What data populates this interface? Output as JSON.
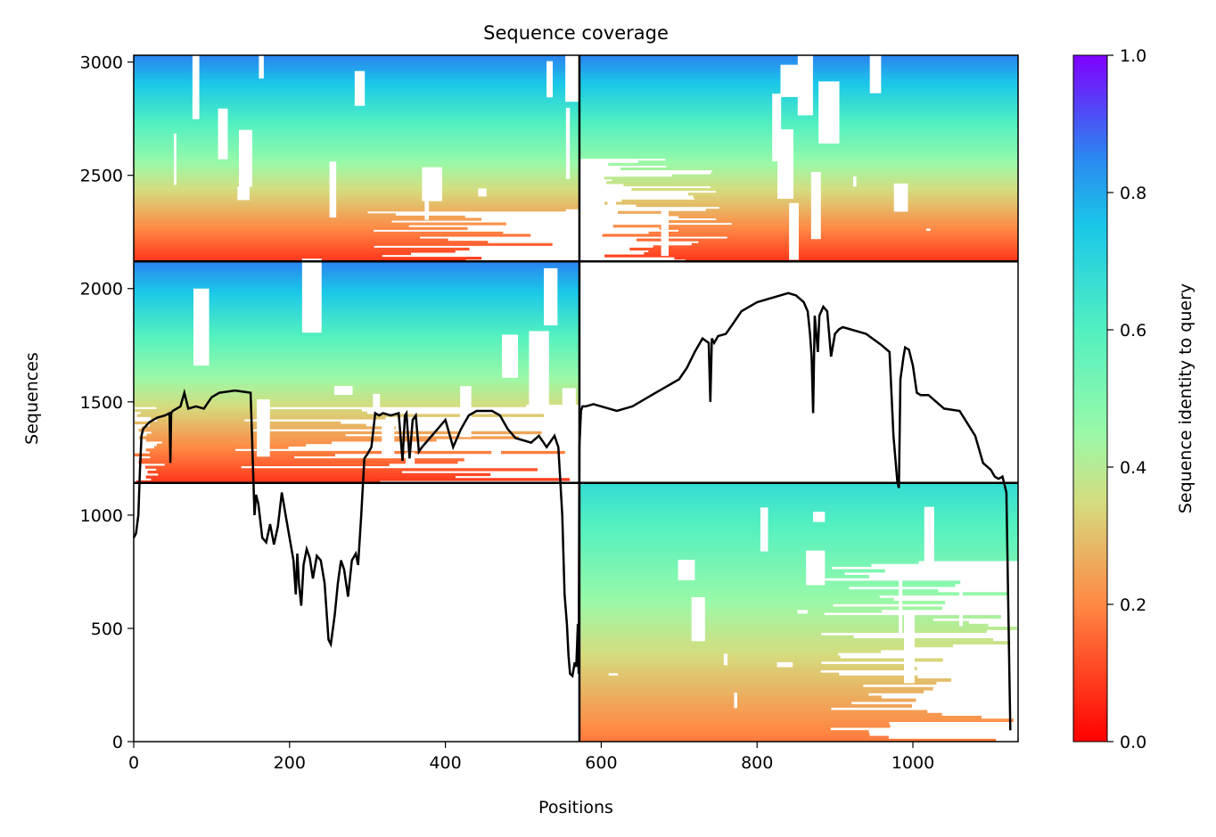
{
  "chart_data": {
    "type": "heatmap",
    "title": "Sequence coverage",
    "xlabel": "Positions",
    "ylabel": "Sequences",
    "xlim": [
      0,
      1135
    ],
    "ylim": [
      0,
      3030
    ],
    "xticks": [
      0,
      200,
      400,
      600,
      800,
      1000
    ],
    "yticks": [
      0,
      500,
      1000,
      1500,
      2000,
      2500,
      3000
    ],
    "colorbar": {
      "label": "Sequence identity to query",
      "range": [
        0.0,
        1.0
      ],
      "ticks": [
        "0.0",
        "0.2",
        "0.4",
        "0.6",
        "0.8",
        "1.0"
      ],
      "colormap": "rainbow_r"
    },
    "block_boundaries": {
      "x": [
        572
      ],
      "y": [
        1142,
        2120
      ]
    },
    "blocks": [
      {
        "xrange": [
          0,
          572
        ],
        "yrange": [
          2120,
          3030
        ]
      },
      {
        "xrange": [
          572,
          1135
        ],
        "yrange": [
          2120,
          3030
        ]
      },
      {
        "xrange": [
          0,
          572
        ],
        "yrange": [
          1142,
          2120
        ]
      },
      {
        "xrange": [
          572,
          1135
        ],
        "yrange": [
          0,
          1142
        ]
      }
    ],
    "coverage_line": {
      "x": [
        0,
        3,
        6,
        8,
        10,
        12,
        20,
        30,
        40,
        46,
        47,
        48,
        50,
        60,
        65,
        70,
        80,
        90,
        100,
        110,
        120,
        130,
        140,
        150,
        155,
        157,
        160,
        165,
        170,
        175,
        180,
        185,
        190,
        195,
        200,
        205,
        208,
        210,
        212,
        215,
        218,
        222,
        226,
        230,
        235,
        240,
        245,
        250,
        253,
        258,
        262,
        266,
        270,
        275,
        280,
        285,
        288,
        292,
        296,
        300,
        305,
        310,
        315,
        320,
        330,
        340,
        345,
        348,
        350,
        354,
        358,
        362,
        366,
        370,
        380,
        390,
        400,
        410,
        420,
        430,
        440,
        450,
        460,
        470,
        480,
        490,
        500,
        510,
        520,
        530,
        540,
        545,
        550,
        553,
        556,
        558,
        560,
        563,
        566,
        568,
        570,
        571,
        572,
        574,
        576,
        580,
        590,
        600,
        620,
        640,
        660,
        670,
        680,
        690,
        700,
        710,
        720,
        730,
        738,
        740,
        742,
        745,
        750,
        760,
        770,
        780,
        790,
        800,
        820,
        840,
        850,
        860,
        865,
        868,
        870,
        872,
        874,
        878,
        880,
        885,
        890,
        895,
        900,
        905,
        910,
        920,
        940,
        960,
        970,
        975,
        980,
        982,
        984,
        986,
        988,
        990,
        995,
        1000,
        1005,
        1010,
        1015,
        1020,
        1030,
        1040,
        1060,
        1080,
        1090,
        1100,
        1105,
        1110,
        1115,
        1120,
        1125,
        1130,
        1132,
        1134
      ],
      "y": [
        900,
        920,
        1000,
        1200,
        1350,
        1380,
        1410,
        1430,
        1440,
        1450,
        1230,
        1450,
        1460,
        1480,
        1540,
        1470,
        1480,
        1470,
        1520,
        1540,
        1545,
        1550,
        1545,
        1540,
        1000,
        1090,
        1050,
        900,
        880,
        960,
        870,
        950,
        1100,
        1000,
        900,
        800,
        650,
        830,
        700,
        600,
        780,
        850,
        810,
        720,
        820,
        800,
        700,
        450,
        430,
        560,
        700,
        800,
        760,
        640,
        800,
        830,
        780,
        1000,
        1250,
        1270,
        1300,
        1450,
        1440,
        1450,
        1440,
        1450,
        1240,
        1440,
        1450,
        1250,
        1420,
        1440,
        1280,
        1300,
        1340,
        1380,
        1420,
        1300,
        1380,
        1440,
        1460,
        1460,
        1460,
        1440,
        1380,
        1340,
        1330,
        1320,
        1350,
        1300,
        1350,
        1300,
        1000,
        650,
        520,
        380,
        300,
        290,
        350,
        330,
        520,
        300,
        1300,
        1460,
        1480,
        1480,
        1490,
        1480,
        1460,
        1480,
        1520,
        1540,
        1560,
        1580,
        1600,
        1650,
        1720,
        1780,
        1760,
        1500,
        1780,
        1760,
        1790,
        1800,
        1850,
        1900,
        1920,
        1940,
        1960,
        1980,
        1970,
        1940,
        1900,
        1800,
        1700,
        1450,
        1880,
        1720,
        1880,
        1920,
        1900,
        1700,
        1800,
        1820,
        1830,
        1820,
        1800,
        1750,
        1720,
        1350,
        1150,
        1120,
        1600,
        1650,
        1700,
        1740,
        1730,
        1660,
        1540,
        1530,
        1530,
        1530,
        1500,
        1470,
        1460,
        1350,
        1230,
        1200,
        1170,
        1160,
        1170,
        1100,
        50
      ]
    },
    "annotations": {
      "title": "Sequence coverage",
      "x_ticklabels": [
        "0",
        "200",
        "400",
        "600",
        "800",
        "1000"
      ],
      "y_ticklabels": [
        "0",
        "500",
        "1000",
        "1500",
        "2000",
        "2500",
        "3000"
      ]
    }
  }
}
